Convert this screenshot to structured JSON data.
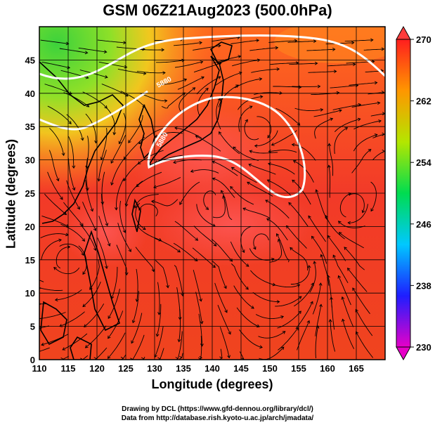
{
  "title": "GSM 06Z21Aug2023 (500.0hPa)",
  "xlabel": "Longitude (degrees)",
  "ylabel": "Latitude  (degrees)",
  "credits": [
    "Drawing by DCL (https://www.gfd-dennou.org/library/dcl/)",
    "Data from http://database.rish.kyoto-u.ac.jp/arch/jmadata/"
  ],
  "map": {
    "lon_range": [
      110,
      170
    ],
    "lat_range": [
      0,
      50
    ],
    "x_ticks": [
      110,
      115,
      120,
      125,
      130,
      135,
      140,
      145,
      150,
      155,
      160,
      165
    ],
    "y_ticks": [
      0,
      5,
      10,
      15,
      20,
      25,
      30,
      35,
      40,
      45
    ],
    "grid": true,
    "contour_labels": [
      "5880",
      "5880"
    ],
    "colorbar": {
      "ticks": [
        230,
        238,
        246,
        254,
        262,
        270
      ],
      "range": [
        230,
        270
      ],
      "colors": [
        "#e600c8",
        "#1e1eff",
        "#00c8ff",
        "#00dc50",
        "#b4e600",
        "#ff9600",
        "#ff1e1e"
      ]
    }
  }
}
